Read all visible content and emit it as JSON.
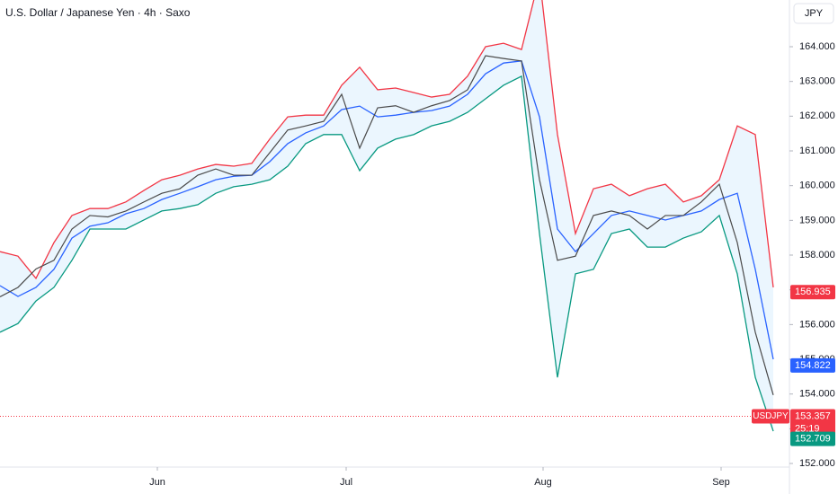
{
  "chart_data": {
    "type": "line",
    "title": "U.S. Dollar / Japanese Yen · 4h · Saxo",
    "currency": "JPY",
    "x": [
      0,
      1,
      2,
      3,
      4,
      5,
      6,
      7,
      8,
      9,
      10,
      11,
      12,
      13,
      14,
      15,
      16,
      17,
      18,
      19,
      20,
      21,
      22,
      23,
      24,
      25,
      26,
      27,
      28,
      29,
      30,
      31,
      32,
      33,
      34,
      35,
      36,
      37,
      38,
      39,
      40,
      41,
      42,
      43
    ],
    "xlim": [
      0,
      44
    ],
    "xticks": [
      {
        "value": 8.75,
        "label": "Jun"
      },
      {
        "value": 19.25,
        "label": "Jul"
      },
      {
        "value": 30.2,
        "label": "Aug"
      },
      {
        "value": 40.1,
        "label": "Sep"
      }
    ],
    "ylim": [
      151.897,
      165.345
    ],
    "yticks": [
      {
        "value": 152,
        "label": "152.000"
      },
      {
        "value": 153,
        "label": "153.000"
      },
      {
        "value": 154,
        "label": "154.000"
      },
      {
        "value": 155,
        "label": "155.000"
      },
      {
        "value": 156,
        "label": "156.000"
      },
      {
        "value": 157,
        "label": "157.000"
      },
      {
        "value": 158,
        "label": "158.000"
      },
      {
        "value": 159,
        "label": "159.000"
      },
      {
        "value": 160,
        "label": "160.000"
      },
      {
        "value": 161,
        "label": "161.000"
      },
      {
        "value": 162,
        "label": "162.000"
      },
      {
        "value": 163,
        "label": "163.000"
      },
      {
        "value": 164,
        "label": "164.000"
      }
    ],
    "grid": false,
    "band_fill": "rgba(33,150,243,0.09)",
    "series": [
      {
        "color": "#f23645",
        "values": [
          158.1,
          157.97,
          157.33,
          158.36,
          159.14,
          159.34,
          159.34,
          159.53,
          159.86,
          160.17,
          160.3,
          160.48,
          160.61,
          160.56,
          160.64,
          161.34,
          161.98,
          162.03,
          162.03,
          162.89,
          163.41,
          162.76,
          162.81,
          162.68,
          162.55,
          162.63,
          163.15,
          164.0,
          164.1,
          163.92,
          166.0,
          161.47,
          158.62,
          159.91,
          160.04,
          159.71,
          159.91,
          160.04,
          159.53,
          159.71,
          160.17,
          161.72,
          161.47,
          157.07
        ]
      },
      {
        "color": "#2962ff",
        "values": [
          157.12,
          156.81,
          157.07,
          157.59,
          158.49,
          158.83,
          158.93,
          159.19,
          159.34,
          159.6,
          159.78,
          159.97,
          160.17,
          160.27,
          160.3,
          160.69,
          161.21,
          161.52,
          161.72,
          162.19,
          162.29,
          161.98,
          162.03,
          162.11,
          162.16,
          162.29,
          162.63,
          163.22,
          163.53,
          163.59,
          161.98,
          158.75,
          158.1,
          158.62,
          159.14,
          159.27,
          159.14,
          159.01,
          159.14,
          159.27,
          159.6,
          159.78,
          157.59,
          155.0
        ]
      },
      {
        "color": "#089981",
        "values": [
          155.78,
          156.03,
          156.68,
          157.07,
          157.85,
          158.75,
          158.75,
          158.75,
          159.01,
          159.27,
          159.34,
          159.45,
          159.78,
          159.97,
          160.04,
          160.17,
          160.56,
          161.21,
          161.47,
          161.47,
          160.43,
          161.08,
          161.34,
          161.47,
          161.72,
          161.85,
          162.11,
          162.5,
          162.89,
          163.15,
          158.62,
          154.48,
          157.46,
          157.59,
          158.62,
          158.75,
          158.23,
          158.23,
          158.49,
          158.67,
          159.14,
          157.46,
          154.48,
          152.93
        ]
      },
      {
        "color": "#4a4a4a",
        "values": [
          156.8,
          157.07,
          157.6,
          157.85,
          158.75,
          159.14,
          159.1,
          159.27,
          159.53,
          159.78,
          159.91,
          160.3,
          160.48,
          160.3,
          160.3,
          160.95,
          161.6,
          161.72,
          161.85,
          162.63,
          161.08,
          162.24,
          162.3,
          162.11,
          162.3,
          162.45,
          162.76,
          163.74,
          163.66,
          163.59,
          160.17,
          157.85,
          157.97,
          159.14,
          159.27,
          159.14,
          158.75,
          159.14,
          159.14,
          159.53,
          160.04,
          158.36,
          155.78,
          153.97
        ]
      }
    ],
    "price_labels": [
      {
        "value": 156.935,
        "color": "#f23645"
      },
      {
        "value": 154.822,
        "color": "#2962ff"
      },
      {
        "value": 153.357,
        "color": "#f23645",
        "symbol": "USDJPY",
        "countdown": "25:19"
      },
      {
        "value": 152.709,
        "color": "#089981"
      }
    ]
  }
}
